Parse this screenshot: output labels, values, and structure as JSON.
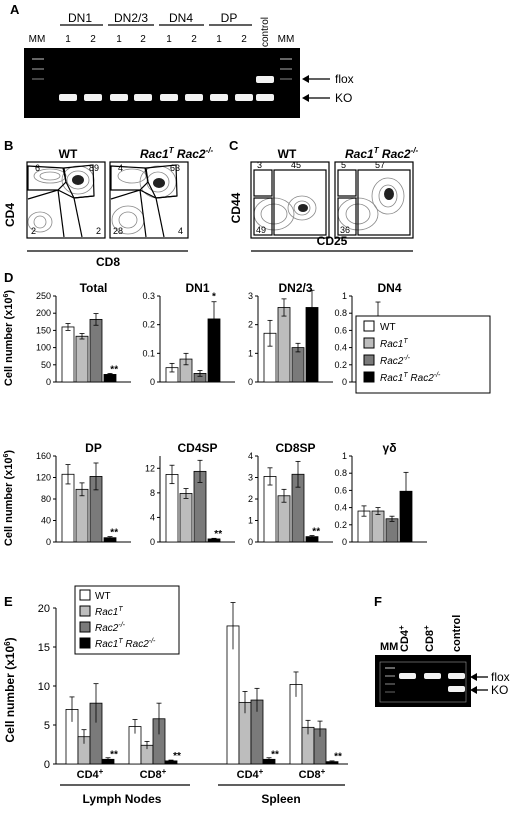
{
  "panels": {
    "A": {
      "letter": "A",
      "groups": [
        "DN1",
        "DN2/3",
        "DN4",
        "DP"
      ],
      "lanes": [
        "1",
        "2",
        "1",
        "2",
        "1",
        "2",
        "1",
        "2"
      ],
      "mm": "MM",
      "control": "control",
      "flox": "flox",
      "ko": "KO"
    },
    "B": {
      "letter": "B",
      "wt": "WT",
      "mut": "Rac1",
      "mut_sup1": "T",
      "mut_mid": " Rac2",
      "mut_sup2": "-/-",
      "ylabel": "CD4",
      "xlabel": "CD8",
      "wt_q": [
        "6",
        "89",
        "2",
        "2"
      ],
      "mut_q": [
        "4",
        "63",
        "28",
        "4"
      ]
    },
    "C": {
      "letter": "C",
      "wt": "WT",
      "ylabel": "CD44",
      "xlabel": "CD25",
      "wt_q": [
        "3",
        "45",
        "49"
      ],
      "mut_q": [
        "5",
        "57",
        "36"
      ]
    },
    "D": {
      "letter": "D",
      "ylabel": "Cell number (x10",
      "ylabel_sup": "6",
      "ylabel_end": ")",
      "legend": [
        "WT",
        "Rac1",
        "Rac2",
        "Rac1"
      ],
      "legend_sup": [
        "",
        "T",
        "-/-",
        "T"
      ],
      "legend_tail": [
        "",
        "",
        "",
        " Rac2"
      ],
      "legend_tail_sup": [
        "",
        "",
        "",
        "-/-"
      ]
    },
    "E": {
      "letter": "E",
      "ylabel": "Cell number (x10",
      "ylabel_sup": "6",
      "ylabel_end": ")",
      "cats": [
        "CD4",
        "CD8",
        "CD4",
        "CD8"
      ],
      "cat_sup": "+",
      "groups": [
        "Lymph Nodes",
        "Spleen"
      ]
    },
    "F": {
      "letter": "F",
      "lanes": [
        "MM",
        "CD4",
        "CD8",
        "control"
      ],
      "lane_sup": [
        "",
        "+",
        "+",
        ""
      ],
      "flox": "flox",
      "ko": "KO"
    }
  },
  "colors": {
    "wt": "#ffffff",
    "rac1": "#bdbdbd",
    "rac2": "#7a7a7a",
    "dko": "#000000"
  },
  "chart_data": [
    {
      "type": "bar",
      "title": "Total",
      "categories": [
        "WT",
        "Rac1T",
        "Rac2-/-",
        "Rac1T Rac2-/-"
      ],
      "values": [
        160,
        133,
        182,
        22
      ],
      "errors": [
        10,
        8,
        17,
        3
      ],
      "ylim": [
        0,
        250
      ],
      "yticks": [
        0,
        50,
        100,
        150,
        200,
        250
      ],
      "sig": "**",
      "sig_bar": 3
    },
    {
      "type": "bar",
      "title": "DN1",
      "categories": [
        "WT",
        "Rac1T",
        "Rac2-/-",
        "Rac1T Rac2-/-"
      ],
      "values": [
        0.05,
        0.08,
        0.03,
        0.22
      ],
      "errors": [
        0.015,
        0.02,
        0.01,
        0.06
      ],
      "ylim": [
        0,
        0.3
      ],
      "yticks": [
        0,
        0.1,
        0.2,
        0.3
      ],
      "sig": "*",
      "sig_bar": 3
    },
    {
      "type": "bar",
      "title": "DN2/3",
      "categories": [
        "WT",
        "Rac1T",
        "Rac2-/-",
        "Rac1T Rac2-/-"
      ],
      "values": [
        1.7,
        2.6,
        1.2,
        2.6
      ],
      "errors": [
        0.45,
        0.3,
        0.15,
        0.6
      ],
      "ylim": [
        0,
        3
      ],
      "yticks": [
        0,
        1,
        2,
        3
      ],
      "sig": "",
      "sig_bar": -1
    },
    {
      "type": "bar",
      "title": "DN4",
      "categories": [
        "WT",
        "Rac1T",
        "Rac2-/-",
        "Rac1T Rac2-/-"
      ],
      "values": [
        0.66,
        0.73,
        0.35,
        0.45
      ],
      "errors": [
        0.08,
        0.2,
        0.12,
        0.12
      ],
      "ylim": [
        0,
        1.0
      ],
      "yticks": [
        0,
        0.2,
        0.4,
        0.6,
        0.8,
        1.0
      ],
      "sig": "",
      "sig_bar": -1
    },
    {
      "type": "bar",
      "title": "DP",
      "categories": [
        "WT",
        "Rac1T",
        "Rac2-/-",
        "Rac1T Rac2-/-"
      ],
      "values": [
        126,
        98,
        122,
        8
      ],
      "errors": [
        18,
        12,
        25,
        2
      ],
      "ylim": [
        0,
        160
      ],
      "yticks": [
        0,
        40,
        80,
        120,
        160
      ],
      "sig": "**",
      "sig_bar": 3
    },
    {
      "type": "bar",
      "title": "CD4SP",
      "categories": [
        "WT",
        "Rac1T",
        "Rac2-/-",
        "Rac1T Rac2-/-"
      ],
      "values": [
        11,
        7.9,
        11.5,
        0.5
      ],
      "errors": [
        1.5,
        0.8,
        1.8,
        0.1
      ],
      "ylim": [
        0,
        14
      ],
      "yticks": [
        0,
        4,
        8,
        12
      ],
      "sig": "**",
      "sig_bar": 3
    },
    {
      "type": "bar",
      "title": "CD8SP",
      "categories": [
        "WT",
        "Rac1T",
        "Rac2-/-",
        "Rac1T Rac2-/-"
      ],
      "values": [
        3.05,
        2.15,
        3.15,
        0.25
      ],
      "errors": [
        0.4,
        0.3,
        0.6,
        0.05
      ],
      "ylim": [
        0,
        4
      ],
      "yticks": [
        0,
        1,
        2,
        3,
        4
      ],
      "sig": "**",
      "sig_bar": 3
    },
    {
      "type": "bar",
      "title": "γδ",
      "categories": [
        "WT",
        "Rac1T",
        "Rac2-/-",
        "Rac1T Rac2-/-"
      ],
      "values": [
        0.36,
        0.36,
        0.27,
        0.59
      ],
      "errors": [
        0.06,
        0.04,
        0.03,
        0.22
      ],
      "ylim": [
        0,
        1.0
      ],
      "yticks": [
        0,
        0.2,
        0.4,
        0.6,
        0.8,
        1.0
      ],
      "sig": "",
      "sig_bar": -1
    },
    {
      "type": "bar",
      "title": "",
      "categories": [
        "CD4+ LN",
        "CD8+ LN",
        "CD4+ Spleen",
        "CD8+ Spleen"
      ],
      "series": [
        {
          "name": "WT",
          "values": [
            7.0,
            4.8,
            17.7,
            10.2
          ],
          "errors": [
            1.6,
            0.9,
            3.0,
            1.6
          ]
        },
        {
          "name": "Rac1T",
          "values": [
            3.5,
            2.4,
            7.9,
            4.7
          ],
          "errors": [
            0.9,
            0.5,
            1.4,
            0.9
          ]
        },
        {
          "name": "Rac2-/-",
          "values": [
            7.8,
            5.8,
            8.2,
            4.5
          ],
          "errors": [
            2.5,
            2.0,
            1.5,
            1.0
          ]
        },
        {
          "name": "Rac1T Rac2-/-",
          "values": [
            0.6,
            0.4,
            0.6,
            0.3
          ],
          "errors": [
            0.2,
            0.1,
            0.2,
            0.1
          ]
        }
      ],
      "ylim": [
        0,
        20
      ],
      "yticks": [
        0,
        5,
        10,
        15,
        20
      ],
      "sig": "**"
    }
  ]
}
